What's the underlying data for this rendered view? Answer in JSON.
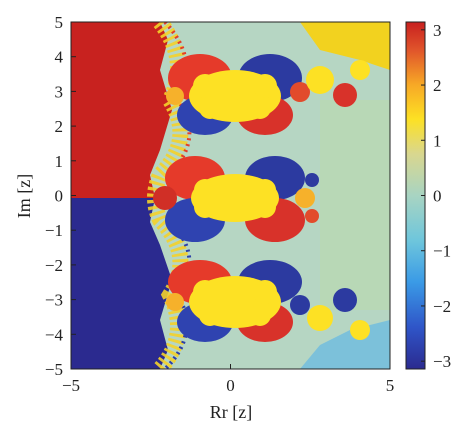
{
  "chart_data": {
    "type": "heatmap",
    "title": "",
    "xlabel": "Rr [z]",
    "ylabel": "Im [z]",
    "xlim": [
      -5,
      5
    ],
    "ylim": [
      -5,
      5
    ],
    "x_ticks": [
      -5,
      0,
      5
    ],
    "x_tick_labels": [
      "−5",
      "0",
      "5"
    ],
    "y_ticks": [
      5,
      4,
      3,
      2,
      1,
      0,
      -1,
      -2,
      -3,
      -4,
      -5
    ],
    "y_tick_labels": [
      "5",
      "4",
      "3",
      "2",
      "1",
      "0",
      "−1",
      "−2",
      "−3",
      "−4",
      "−5"
    ],
    "colorbar": {
      "range": [
        -3.14159,
        3.14159
      ],
      "ticks": [
        3,
        2,
        1,
        0,
        -1,
        -2,
        -3
      ],
      "tick_labels": [
        "3",
        "2",
        "1",
        "0",
        "−1",
        "−2",
        "−3"
      ],
      "colormap": [
        "#2b2a8f",
        "#2f6fe0",
        "#45b2e6",
        "#9ed2cf",
        "#c9d8a8",
        "#fde124",
        "#f4a623",
        "#e0542b",
        "#c8201f"
      ]
    },
    "description_values": {
      "left_upper_half_phase": 3.1,
      "left_lower_half_phase": -3.1,
      "right_region_phase": 0.2,
      "fractal_centers_im": [
        3,
        0,
        -3
      ]
    }
  }
}
